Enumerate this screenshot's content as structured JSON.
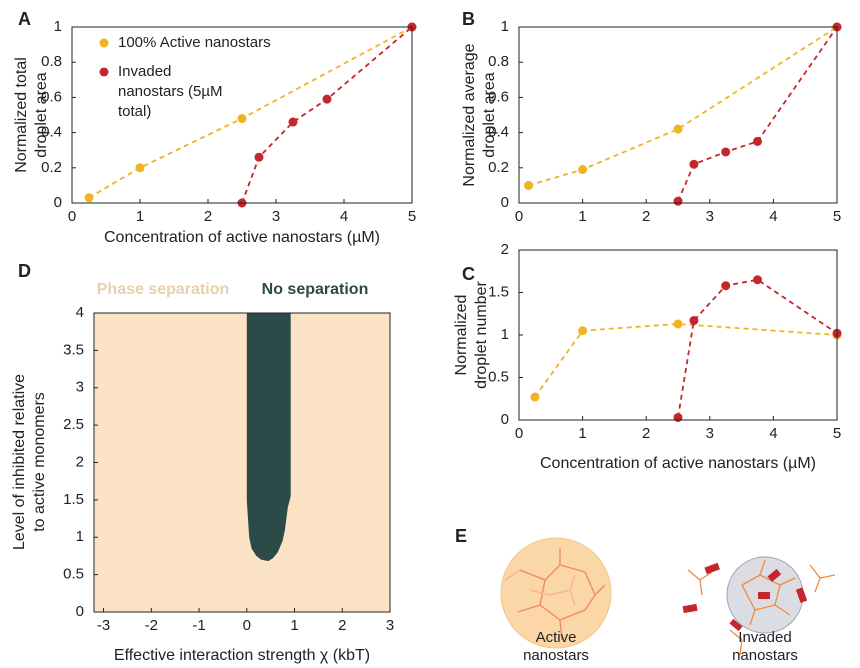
{
  "chart_data": [
    {
      "type": "line",
      "label": "A",
      "ylabel": [
        "Normalized total",
        "droplet area"
      ],
      "xlabel": "Concentration of active nanostars (µM)",
      "xlim": [
        0,
        5
      ],
      "ylim": [
        0,
        1
      ],
      "xticks": [
        0,
        1,
        2,
        3,
        4,
        5
      ],
      "yticks": [
        0,
        0.2,
        0.4,
        0.6,
        0.8,
        1
      ],
      "legend": "upper left",
      "series": [
        {
          "name": "100% Active nanostars",
          "color": "#f0b323",
          "x": [
            0.25,
            1,
            2.5,
            5
          ],
          "values": [
            0.03,
            0.2,
            0.48,
            1.0
          ]
        },
        {
          "name": "Invaded nanostars (5µM total)",
          "color": "#c4262e",
          "x": [
            2.5,
            2.75,
            3.25,
            3.75,
            5
          ],
          "values": [
            0,
            0.26,
            0.46,
            0.59,
            1.0
          ]
        }
      ]
    },
    {
      "type": "line",
      "label": "B",
      "ylabel": [
        "Normalized average",
        "droplet area"
      ],
      "xlim": [
        0,
        5
      ],
      "ylim": [
        0,
        1
      ],
      "xticks": [
        0,
        1,
        2,
        3,
        4,
        5
      ],
      "yticks": [
        0,
        0.2,
        0.4,
        0.6,
        0.8,
        1
      ],
      "series": [
        {
          "color": "#f0b323",
          "x": [
            0.15,
            1,
            2.5,
            5
          ],
          "values": [
            0.1,
            0.19,
            0.42,
            1.0
          ]
        },
        {
          "color": "#c4262e",
          "x": [
            2.5,
            2.75,
            3.25,
            3.75,
            5
          ],
          "values": [
            0.01,
            0.22,
            0.29,
            0.35,
            1.0
          ]
        }
      ]
    },
    {
      "type": "line",
      "label": "C",
      "ylabel": [
        "Normalized",
        "droplet number"
      ],
      "xlabel": "Concentration of active nanostars (µM)",
      "xlim": [
        0,
        5
      ],
      "ylim": [
        0,
        2
      ],
      "xticks": [
        0,
        1,
        2,
        3,
        4,
        5
      ],
      "yticks": [
        0,
        0.5,
        1,
        1.5,
        2
      ],
      "series": [
        {
          "color": "#f0b323",
          "x": [
            0.25,
            1,
            2.5,
            5
          ],
          "values": [
            0.27,
            1.05,
            1.13,
            1.0
          ]
        },
        {
          "color": "#c4262e",
          "x": [
            2.5,
            2.75,
            3.25,
            3.75,
            5
          ],
          "values": [
            0.03,
            1.17,
            1.58,
            1.65,
            1.02
          ]
        }
      ]
    },
    {
      "type": "region",
      "label": "D",
      "ylabel": [
        "Level of inhibited relative",
        "to active monomers"
      ],
      "xlabel": "Effective interaction strength χ (kbT)",
      "xlim": [
        -3.2,
        3
      ],
      "ylim": [
        0,
        4
      ],
      "xticks": [
        -3,
        -2,
        -1,
        0,
        1,
        2,
        3
      ],
      "yticks": [
        0,
        0.5,
        1,
        1.5,
        2,
        2.5,
        3,
        3.5,
        4
      ],
      "series": [
        {
          "name": "Phase separation",
          "color": "#fde3c6"
        },
        {
          "name": "No separation",
          "color": "#2b4a48",
          "x": [
            0,
            0.92,
            0.92,
            0.86,
            0.8,
            0.75,
            0.65,
            0.55,
            0.45,
            0.3,
            0.2,
            0.1,
            0.05,
            0.03,
            0
          ],
          "values": [
            4,
            4,
            1.55,
            1.4,
            1.1,
            0.95,
            0.8,
            0.72,
            0.68,
            0.7,
            0.75,
            0.85,
            1.0,
            1.2,
            1.5
          ]
        }
      ]
    }
  ],
  "diagram": {
    "label": "E",
    "items": [
      [
        "Active",
        "nanostars"
      ],
      [
        "Invaded",
        "nanostars"
      ]
    ]
  }
}
